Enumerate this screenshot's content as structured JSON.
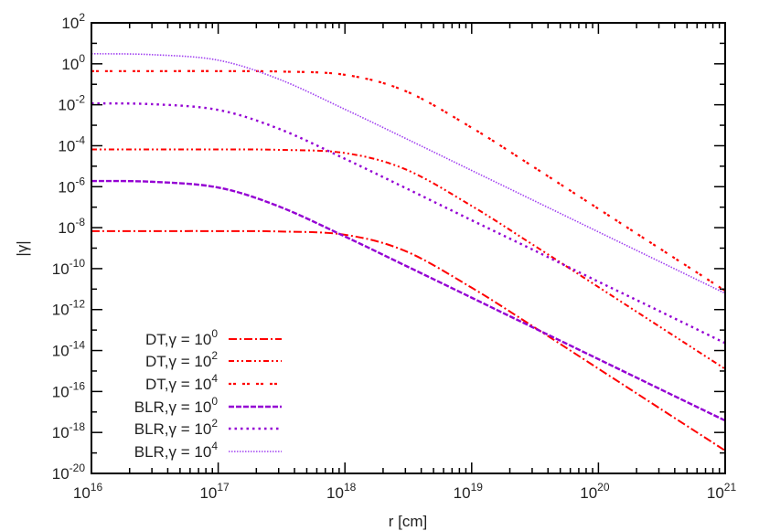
{
  "chart_data": {
    "type": "line",
    "xlabel": "r [cm]",
    "ylabel": "|γ|",
    "xscale": "log",
    "yscale": "log",
    "xlim": [
      1e+16,
      1e+21
    ],
    "ylim": [
      1e-20,
      100.0
    ],
    "grid": false,
    "legend_position": "bottom-left",
    "x_ticks": [
      {
        "base": "10",
        "exp": "16"
      },
      {
        "base": "10",
        "exp": "17"
      },
      {
        "base": "10",
        "exp": "18"
      },
      {
        "base": "10",
        "exp": "19"
      },
      {
        "base": "10",
        "exp": "20"
      },
      {
        "base": "10",
        "exp": "21"
      }
    ],
    "y_ticks": [
      {
        "base": "10",
        "exp": "2"
      },
      {
        "base": "10",
        "exp": "0"
      },
      {
        "base": "10",
        "exp": "-2"
      },
      {
        "base": "10",
        "exp": "-4"
      },
      {
        "base": "10",
        "exp": "-6"
      },
      {
        "base": "10",
        "exp": "-8"
      },
      {
        "base": "10",
        "exp": "-10"
      },
      {
        "base": "10",
        "exp": "-12"
      },
      {
        "base": "10",
        "exp": "-14"
      },
      {
        "base": "10",
        "exp": "-16"
      },
      {
        "base": "10",
        "exp": "-18"
      },
      {
        "base": "10",
        "exp": "-20"
      }
    ],
    "x": [
      1e+16,
      3e+16,
      1e+17,
      3e+17,
      1e+18,
      3e+18,
      1e+19,
      3e+19,
      1e+20,
      3e+20,
      1e+21
    ],
    "series": [
      {
        "name": "DT,γ = 10",
        "name_exp": "0",
        "color": "#ff0000",
        "style": "dash-dot",
        "values": [
          6.8e-09,
          6.8e-09,
          6.8e-09,
          6.5e-09,
          4.5e-09,
          7.2e-10,
          1.17e-11,
          1.6e-13,
          1.3e-15,
          1.6e-17,
          1.3e-19
        ]
      },
      {
        "name": "DT,γ = 10",
        "name_exp": "2",
        "color": "#ff0000",
        "style": "dash-dot-dot",
        "values": [
          6.6e-05,
          6.6e-05,
          6.6e-05,
          6.3e-05,
          4.4e-05,
          7.1e-06,
          1.15e-07,
          1.55e-09,
          1.26e-11,
          1.55e-13,
          1.26e-15
        ]
      },
      {
        "name": "DT,γ = 10",
        "name_exp": "4",
        "color": "#ff0000",
        "style": "double-dot",
        "values": [
          0.44,
          0.44,
          0.44,
          0.42,
          0.29,
          0.047,
          0.00076,
          1.02e-05,
          8.3e-08,
          1.02e-09,
          8.3e-12
        ]
      },
      {
        "name": "BLR,γ = 10",
        "name_exp": "0",
        "color": "#9400d3",
        "style": "dashed",
        "values": [
          1.9e-06,
          1.74e-06,
          9.1e-07,
          1.1e-07,
          3.7e-09,
          1.4e-10,
          3.8e-12,
          1.4e-13,
          3.8e-15,
          1.4e-16,
          3.8e-18
        ]
      },
      {
        "name": "BLR,γ = 10",
        "name_exp": "2",
        "color": "#9400d3",
        "style": "dotted",
        "values": [
          0.0117,
          0.0107,
          0.0056,
          0.00068,
          2.3e-05,
          8.7e-07,
          2.3e-08,
          8.7e-10,
          2.3e-11,
          8.7e-13,
          2.3e-14
        ]
      },
      {
        "name": "BLR,γ = 10",
        "name_exp": "4",
        "color": "#a040f0",
        "style": "fine-dotted",
        "values": [
          3.1,
          2.8,
          1.5,
          0.18,
          0.006,
          0.00023,
          6.2e-06,
          2.3e-07,
          6.2e-09,
          2.3e-10,
          6.2e-12
        ]
      }
    ]
  }
}
